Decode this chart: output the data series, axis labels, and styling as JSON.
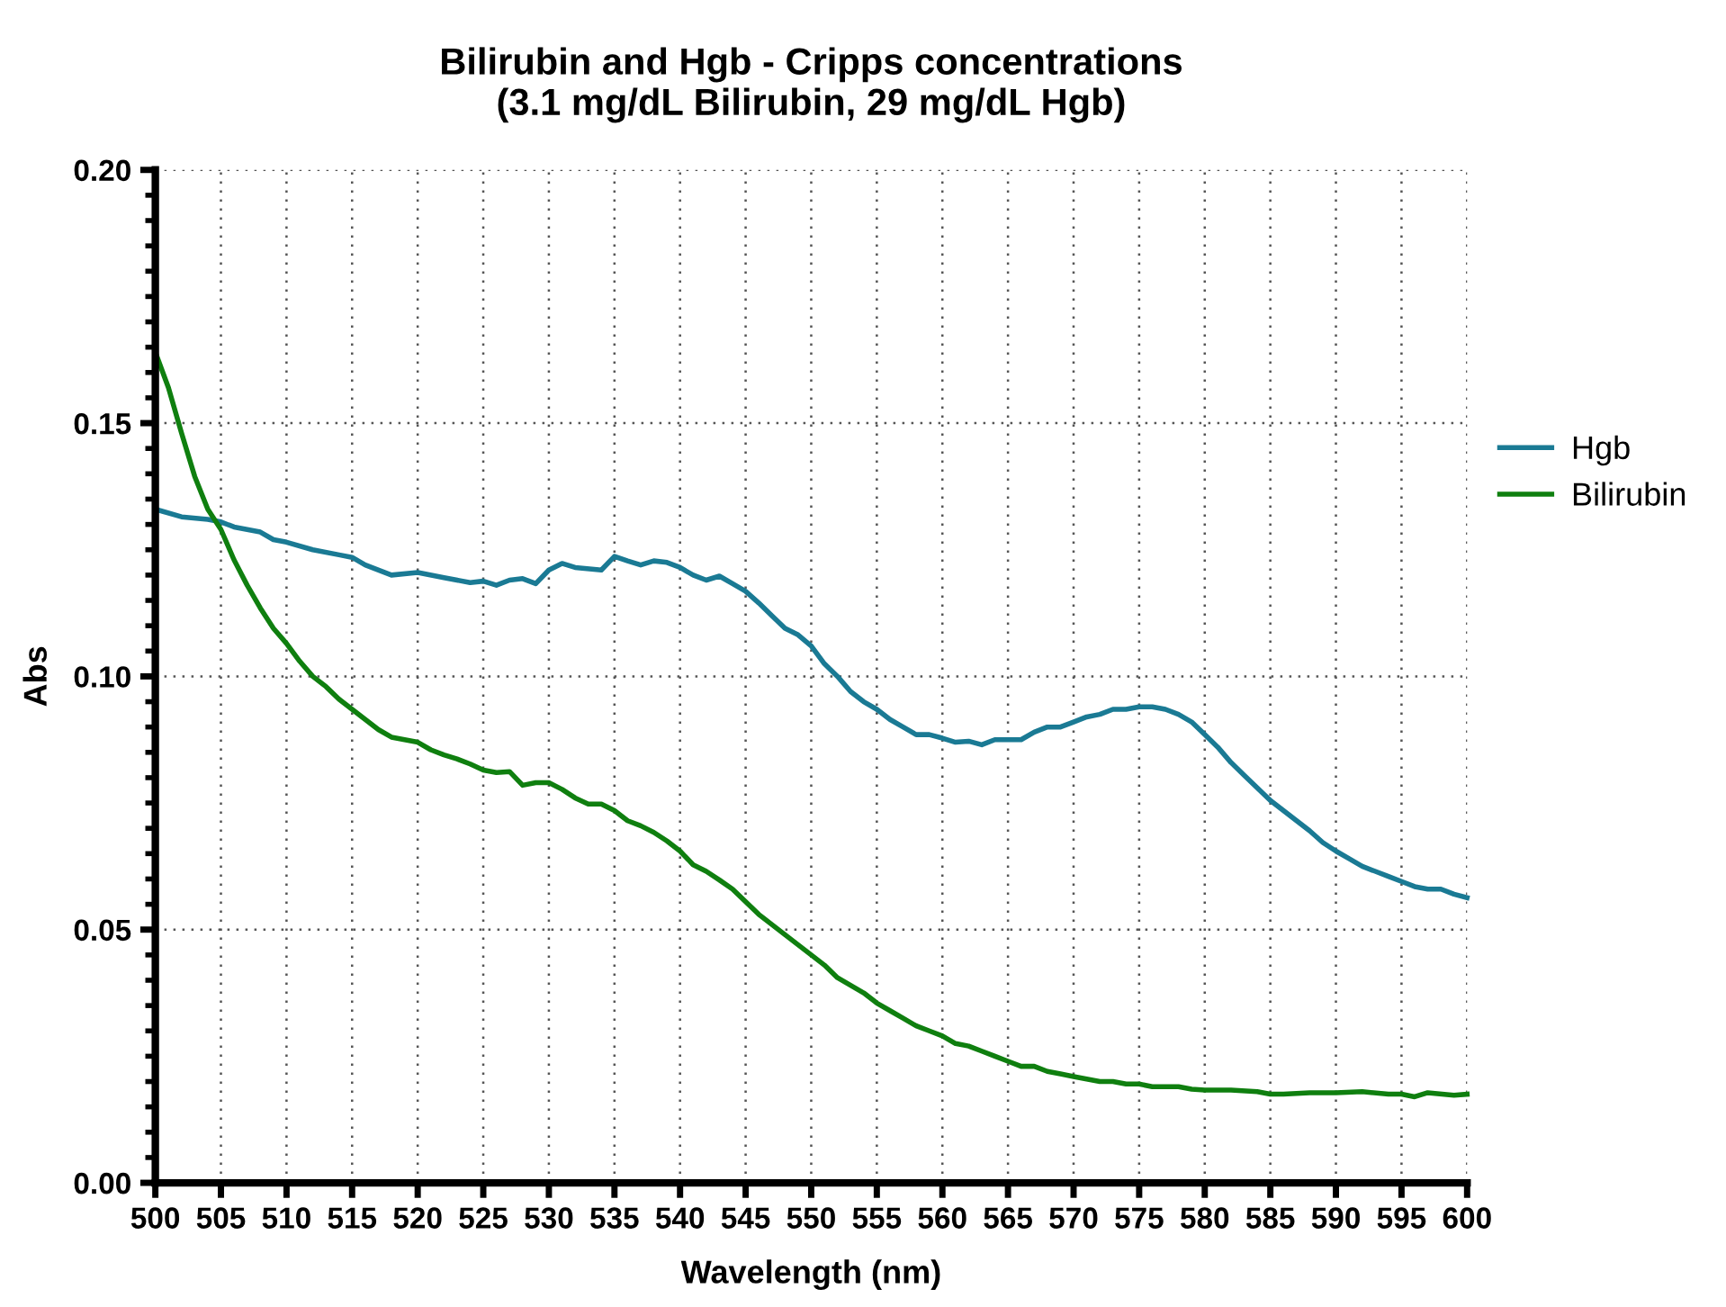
{
  "chart_data": {
    "type": "line",
    "title": "Bilirubin and Hgb - Cripps concentrations\n(3.1 mg/dL Bilirubin, 29 mg/dL Hgb)",
    "xlabel": "Wavelength (nm)",
    "ylabel": "Abs",
    "xlim": [
      500,
      600
    ],
    "xticks": [
      500,
      505,
      510,
      515,
      520,
      525,
      530,
      535,
      540,
      545,
      550,
      555,
      560,
      565,
      570,
      575,
      580,
      585,
      590,
      595,
      600
    ],
    "ylim": [
      0,
      0.2
    ],
    "yticks": [
      {
        "value": 0,
        "label": "0.00"
      },
      0.05,
      {
        "value": 0.1,
        "label": "0.10"
      },
      0.15,
      {
        "value": 0.2,
        "label": "0.20"
      }
    ],
    "grid": true,
    "legend": "right",
    "line_style": "solid",
    "marker": "none",
    "series": [
      {
        "name": "Hgb",
        "color": "#1a7a94",
        "x": [
          500,
          502,
          504,
          505,
          506,
          508,
          509,
          510,
          512,
          514,
          515,
          516,
          518,
          520,
          522,
          524,
          525,
          526,
          527,
          528,
          529,
          530,
          531,
          532,
          534,
          535,
          536,
          537,
          538,
          539,
          540,
          541,
          542,
          543,
          544,
          545,
          546,
          547,
          548,
          549,
          550,
          551,
          552,
          553,
          554,
          555,
          556,
          557,
          558,
          559,
          560,
          561,
          562,
          563,
          564,
          565,
          566,
          567,
          568,
          569,
          570,
          571,
          572,
          573,
          574,
          575,
          576,
          577,
          578,
          579,
          580,
          581,
          582,
          583,
          584,
          585,
          586,
          587,
          588,
          589,
          590,
          591,
          592,
          593,
          594,
          595,
          596,
          597,
          598,
          599,
          600
        ],
        "values": [
          0.133,
          0.1315,
          0.131,
          0.1305,
          0.1295,
          0.1285,
          0.127,
          0.1265,
          0.125,
          0.124,
          0.1235,
          0.122,
          0.12,
          0.1205,
          0.1195,
          0.1185,
          0.1188,
          0.118,
          0.119,
          0.1193,
          0.1183,
          0.121,
          0.1223,
          0.1215,
          0.121,
          0.1237,
          0.1228,
          0.122,
          0.1228,
          0.1225,
          0.1215,
          0.12,
          0.119,
          0.1198,
          0.1183,
          0.1168,
          0.1145,
          0.112,
          0.1095,
          0.1082,
          0.106,
          0.1025,
          0.1,
          0.097,
          0.095,
          0.0935,
          0.0915,
          0.09,
          0.0885,
          0.0885,
          0.0878,
          0.087,
          0.0872,
          0.0865,
          0.0875,
          0.0875,
          0.0875,
          0.089,
          0.09,
          0.09,
          0.091,
          0.092,
          0.0925,
          0.0935,
          0.0935,
          0.094,
          0.094,
          0.0935,
          0.0925,
          0.091,
          0.0885,
          0.086,
          0.083,
          0.0805,
          0.078,
          0.0755,
          0.0735,
          0.0715,
          0.0695,
          0.0672,
          0.0655,
          0.064,
          0.0625,
          0.0615,
          0.0605,
          0.0595,
          0.0585,
          0.058,
          0.058,
          0.057,
          0.0563
        ]
      },
      {
        "name": "Bilirubin",
        "color": "#0f7f0f",
        "x": [
          500,
          501,
          502,
          503,
          504,
          505,
          506,
          507,
          508,
          509,
          510,
          511,
          512,
          513,
          514,
          515,
          516,
          517,
          518,
          519,
          520,
          521,
          522,
          523,
          524,
          525,
          526,
          527,
          528,
          529,
          530,
          531,
          532,
          533,
          534,
          535,
          536,
          537,
          538,
          539,
          540,
          541,
          542,
          543,
          544,
          545,
          546,
          547,
          548,
          549,
          550,
          551,
          552,
          553,
          554,
          555,
          556,
          557,
          558,
          559,
          560,
          561,
          562,
          563,
          564,
          565,
          566,
          567,
          568,
          569,
          570,
          571,
          572,
          573,
          574,
          575,
          576,
          577,
          578,
          579,
          580,
          582,
          584,
          585,
          586,
          588,
          590,
          592,
          594,
          595,
          596,
          597,
          599,
          600
        ],
        "values": [
          0.164,
          0.157,
          0.148,
          0.1395,
          0.133,
          0.129,
          0.123,
          0.118,
          0.1135,
          0.1095,
          0.1065,
          0.103,
          0.1,
          0.098,
          0.0955,
          0.0935,
          0.0915,
          0.0895,
          0.088,
          0.0875,
          0.087,
          0.0855,
          0.0845,
          0.0837,
          0.0827,
          0.0815,
          0.081,
          0.0812,
          0.0785,
          0.079,
          0.079,
          0.0777,
          0.076,
          0.0748,
          0.0748,
          0.0735,
          0.0715,
          0.0705,
          0.0692,
          0.0675,
          0.0655,
          0.0628,
          0.0615,
          0.0598,
          0.058,
          0.0555,
          0.053,
          0.051,
          0.049,
          0.047,
          0.045,
          0.043,
          0.0405,
          0.039,
          0.0375,
          0.0355,
          0.034,
          0.0325,
          0.031,
          0.03,
          0.029,
          0.0275,
          0.027,
          0.026,
          0.025,
          0.024,
          0.023,
          0.023,
          0.022,
          0.0215,
          0.021,
          0.0205,
          0.02,
          0.02,
          0.0195,
          0.0195,
          0.019,
          0.019,
          0.019,
          0.0185,
          0.0183,
          0.0183,
          0.018,
          0.0175,
          0.0175,
          0.0178,
          0.0178,
          0.018,
          0.0175,
          0.0175,
          0.017,
          0.0178,
          0.0173,
          0.0175
        ]
      }
    ]
  }
}
